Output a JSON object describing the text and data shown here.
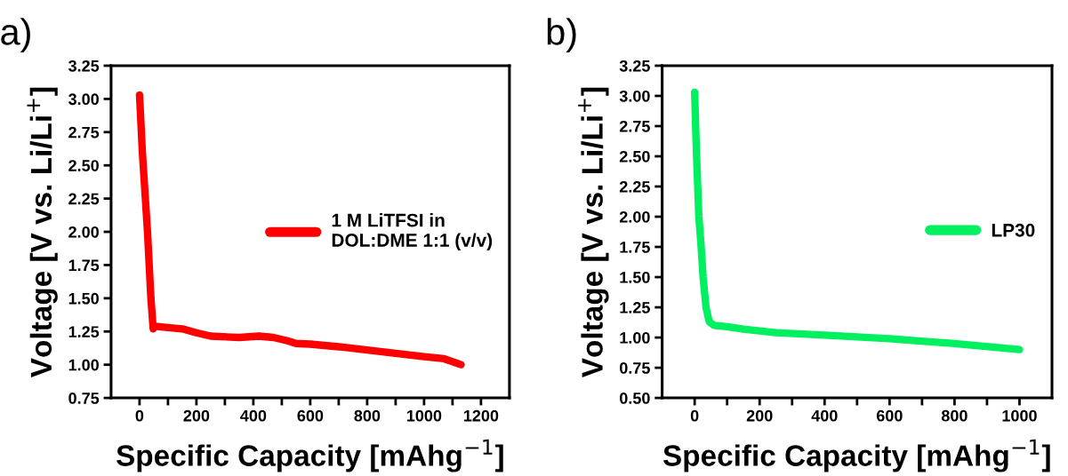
{
  "chart_data": [
    {
      "type": "line",
      "title": "a)",
      "xlabel": "Specific Capacity [mAhg$^{−1}$]",
      "ylabel": "Voltage [V vs. Li/Li$^{+}$]",
      "x": [
        0,
        10,
        28,
        40,
        48,
        55,
        100,
        150,
        200,
        250,
        350,
        420,
        470,
        520,
        550,
        600,
        700,
        800,
        900,
        1000,
        1070,
        1130
      ],
      "series": [
        {
          "name": "1 M LiTFSI in\nDOL:DME 1:1 (v/v)",
          "color": "#ff0000",
          "values": [
            3.03,
            2.6,
            2.0,
            1.5,
            1.27,
            1.29,
            1.28,
            1.27,
            1.24,
            1.215,
            1.205,
            1.215,
            1.205,
            1.18,
            1.16,
            1.155,
            1.135,
            1.11,
            1.085,
            1.06,
            1.045,
            1.0
          ]
        }
      ],
      "xlim": [
        -100,
        1300
      ],
      "ylim": [
        0.75,
        3.25
      ],
      "xticks": [
        0,
        {
          "value": 100,
          "label": null
        },
        200,
        {
          "value": 300,
          "label": null
        },
        400,
        {
          "value": 500,
          "label": null
        },
        600,
        {
          "value": 700,
          "label": null
        },
        800,
        {
          "value": 900,
          "label": null
        },
        1000,
        {
          "value": 1100,
          "label": null
        },
        1200
      ],
      "yticks": [
        {
          "value": 0.75,
          "label": "0.75"
        },
        {
          "value": 1.0,
          "label": "1.00"
        },
        {
          "value": 1.25,
          "label": "1.25"
        },
        {
          "value": 1.5,
          "label": "1.50"
        },
        {
          "value": 1.75,
          "label": "1.75"
        },
        {
          "value": 2.0,
          "label": "2.00"
        },
        {
          "value": 2.25,
          "label": "2.25"
        },
        {
          "value": 2.5,
          "label": "2.50"
        },
        {
          "value": 2.75,
          "label": "2.75"
        },
        {
          "value": 3.0,
          "label": "3.00"
        },
        {
          "value": 3.25,
          "label": "3.25"
        }
      ],
      "legend": "right",
      "grid": false,
      "marker": "none",
      "line_style": "solid"
    },
    {
      "type": "line",
      "title": "b)",
      "xlabel": "Specific Capacity [mAhg$^{−1}$]",
      "ylabel": "Voltage [V vs. Li/Li$^{+}$]",
      "x": [
        0,
        3,
        6,
        13,
        20,
        26,
        35,
        45,
        60,
        100,
        150,
        250,
        400,
        600,
        800,
        1000
      ],
      "series": [
        {
          "name": "LP30",
          "color": "#00f060",
          "values": [
            3.03,
            2.75,
            2.5,
            2.0,
            1.75,
            1.5,
            1.25,
            1.13,
            1.1,
            1.09,
            1.07,
            1.04,
            1.02,
            0.99,
            0.95,
            0.9
          ]
        }
      ],
      "xlim": [
        -100,
        1100
      ],
      "ylim": [
        0.5,
        3.25
      ],
      "xticks": [
        0,
        {
          "value": 100,
          "label": null
        },
        200,
        {
          "value": 300,
          "label": null
        },
        400,
        {
          "value": 500,
          "label": null
        },
        600,
        {
          "value": 700,
          "label": null
        },
        800,
        {
          "value": 900,
          "label": null
        },
        1000
      ],
      "yticks": [
        {
          "value": 0.5,
          "label": "0.50"
        },
        {
          "value": 0.75,
          "label": "0.75"
        },
        {
          "value": 1.0,
          "label": "1.00"
        },
        {
          "value": 1.25,
          "label": "1.25"
        },
        {
          "value": 1.5,
          "label": "1.50"
        },
        {
          "value": 1.75,
          "label": "1.75"
        },
        {
          "value": 2.0,
          "label": "2.00"
        },
        {
          "value": 2.25,
          "label": "2.25"
        },
        {
          "value": 2.5,
          "label": "2.50"
        },
        {
          "value": 2.75,
          "label": "2.75"
        },
        {
          "value": 3.0,
          "label": "3.00"
        },
        {
          "value": 3.25,
          "label": "3.25"
        }
      ],
      "legend": "right",
      "grid": false,
      "marker": "none",
      "line_style": "solid"
    }
  ]
}
